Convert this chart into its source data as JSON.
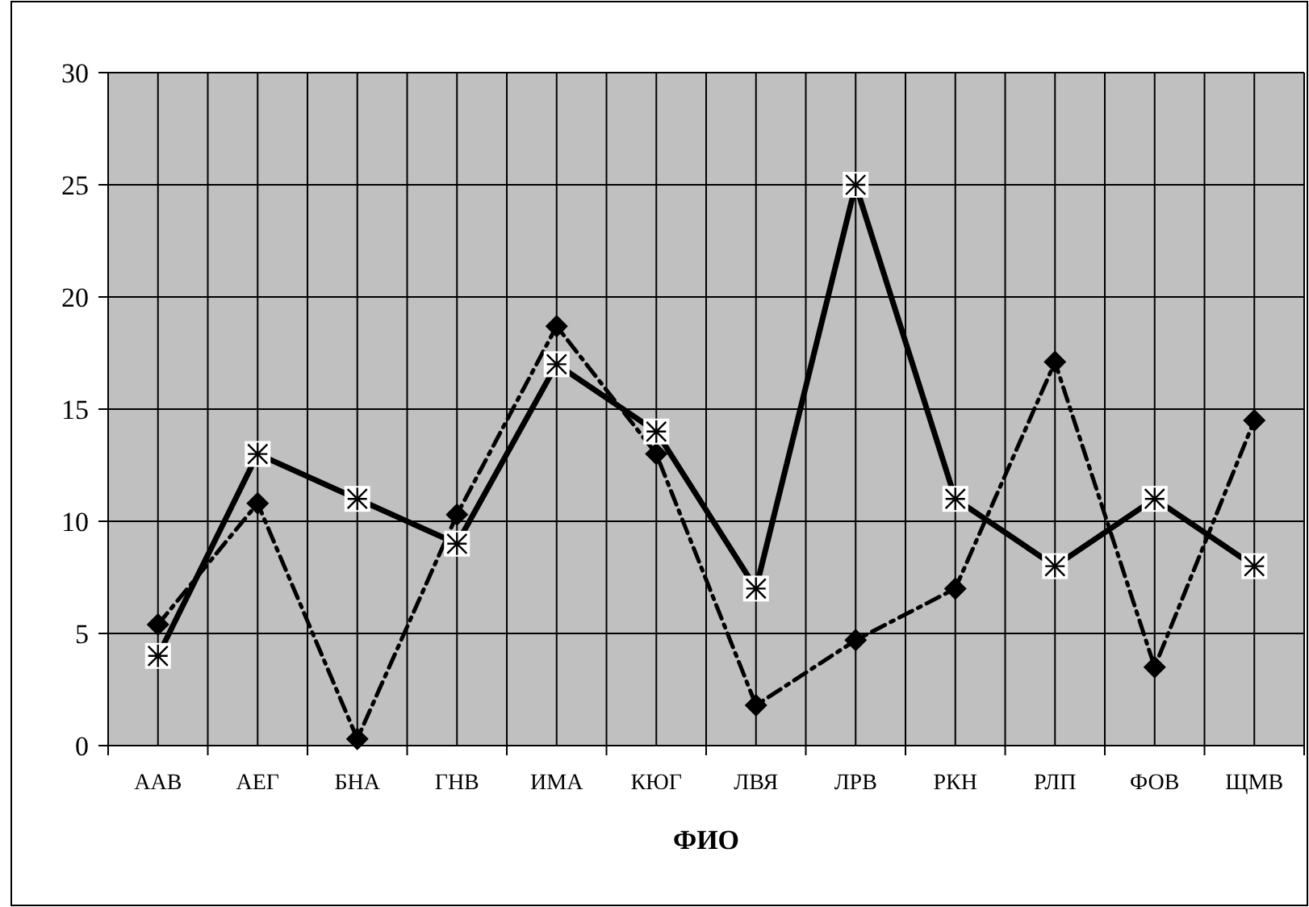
{
  "chart_data": {
    "type": "line",
    "xlabel": "ФИО",
    "categories": [
      "ААВ",
      "АЕГ",
      "БНА",
      "ГНВ",
      "ИМА",
      "КЮГ",
      "ЛВЯ",
      "ЛРВ",
      "РКН",
      "РЛП",
      "ФОВ",
      "ЩМВ"
    ],
    "ylim": [
      0,
      30
    ],
    "yticks": [
      0,
      5,
      10,
      15,
      20,
      25,
      30
    ],
    "grid": true,
    "series": [
      {
        "color": "#000000",
        "marker": "diamond",
        "line_style": "dashed",
        "values": [
          5.4,
          10.8,
          0.3,
          10.3,
          18.7,
          13,
          1.8,
          4.7,
          7,
          17.1,
          3.5,
          14.5
        ]
      },
      {
        "color": "#000000",
        "marker": "cross",
        "line_style": "solid",
        "values": [
          4,
          13,
          11,
          9,
          17,
          14,
          7,
          25,
          11,
          8,
          11,
          8
        ]
      }
    ]
  }
}
